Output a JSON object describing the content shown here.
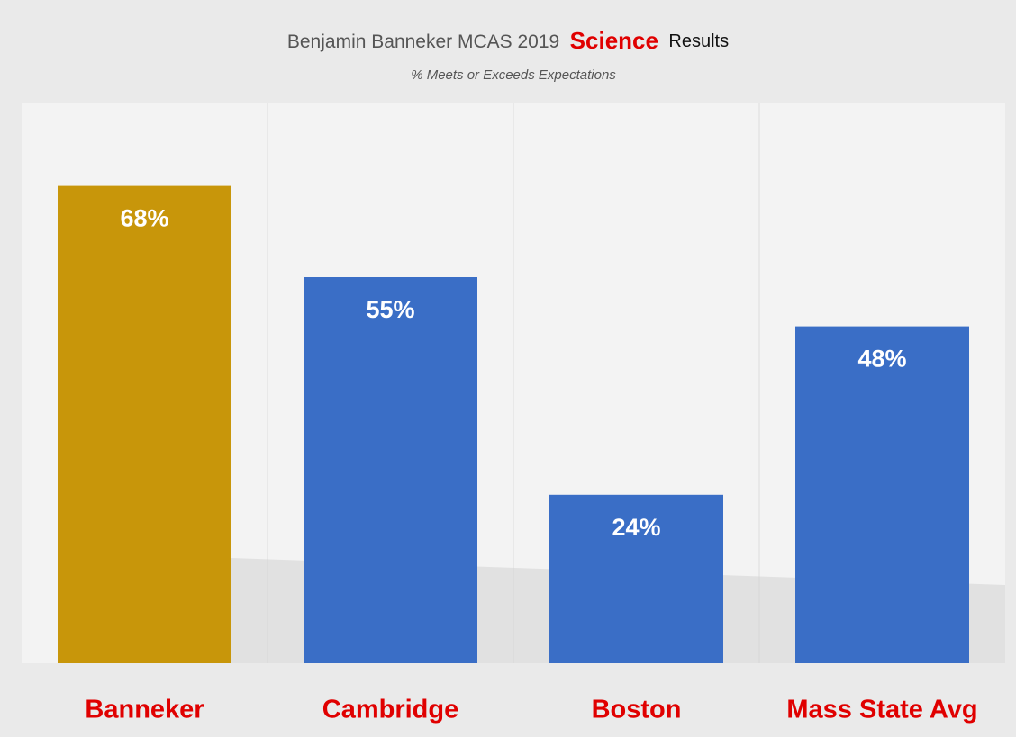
{
  "chart_data": {
    "type": "bar",
    "title": [
      "Benjamin Banneker MCAS 2019",
      "Science",
      "Results"
    ],
    "subtitle": "% Meets or Exceeds Expectations",
    "categories": [
      "Banneker",
      "Cambridge",
      "Boston",
      "Mass State Avg"
    ],
    "values": [
      68,
      55,
      24,
      48
    ],
    "value_labels": [
      "68%",
      "55%",
      "24%",
      "48%"
    ],
    "colors": [
      "#c8960a",
      "#3a6ec6",
      "#3a6ec6",
      "#3a6ec6"
    ],
    "grid": false
  }
}
